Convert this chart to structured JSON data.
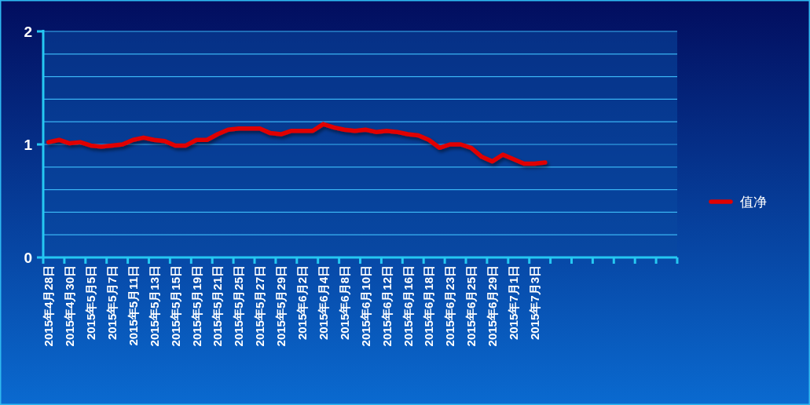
{
  "chart_data": {
    "type": "line",
    "categories": [
      "2015年4月28日",
      null,
      "2015年4月30日",
      null,
      "2015年5月5日",
      null,
      "2015年5月7日",
      null,
      "2015年5月11日",
      null,
      "2015年5月13日",
      null,
      "2015年5月15日",
      null,
      "2015年5月19日",
      null,
      "2015年5月21日",
      null,
      "2015年5月25日",
      null,
      "2015年5月27日",
      null,
      "2015年5月29日",
      null,
      "2015年6月2日",
      null,
      "2015年6月4日",
      null,
      "2015年6月8日",
      null,
      "2015年6月10日",
      null,
      "2015年6月12日",
      null,
      "2015年6月16日",
      null,
      "2015年6月18日",
      null,
      "2015年6月23日",
      null,
      "2015年6月25日",
      null,
      "2015年6月29日",
      null,
      "2015年7月1日",
      null,
      "2015年7月3日",
      null,
      null,
      null,
      null,
      null,
      null,
      null,
      null,
      null,
      null,
      null,
      null,
      null
    ],
    "series": [
      {
        "name": "值净",
        "color": "#e00000",
        "values": [
          1.02,
          1.04,
          1.01,
          1.02,
          0.99,
          0.98,
          0.99,
          1.0,
          1.04,
          1.06,
          1.04,
          1.03,
          0.99,
          0.99,
          1.04,
          1.04,
          1.09,
          1.13,
          1.14,
          1.14,
          1.14,
          1.1,
          1.09,
          1.12,
          1.12,
          1.12,
          1.18,
          1.15,
          1.13,
          1.12,
          1.13,
          1.11,
          1.12,
          1.11,
          1.09,
          1.08,
          1.04,
          0.97,
          1.0,
          1.0,
          0.97,
          0.89,
          0.85,
          0.91,
          0.87,
          0.83,
          0.83,
          0.84,
          null,
          null,
          null,
          null,
          null,
          null,
          null,
          null,
          null,
          null,
          null,
          null
        ]
      }
    ],
    "ylim": [
      0,
      2
    ],
    "yticks": [
      0,
      {
        "value": 0.2,
        "label": null
      },
      {
        "value": 0.4,
        "label": null
      },
      {
        "value": 0.6,
        "label": null
      },
      {
        "value": 0.8,
        "label": null
      },
      1,
      {
        "value": 1.2,
        "label": null
      },
      {
        "value": 1.4,
        "label": null
      },
      {
        "value": 1.6,
        "label": null
      },
      {
        "value": 1.8,
        "label": null
      },
      2
    ],
    "grid": "y",
    "legend": "right",
    "marker": "none",
    "line_style": "solid"
  }
}
